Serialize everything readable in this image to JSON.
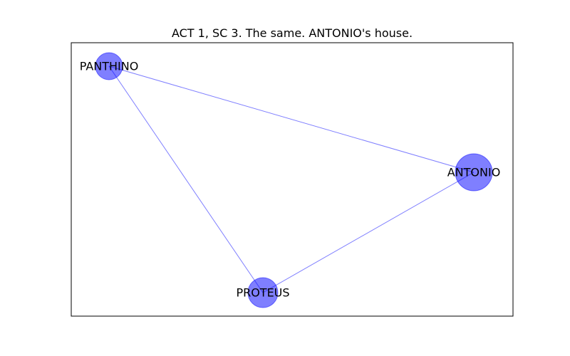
{
  "figure": {
    "title": "ACT 1, SC 3. The same. ANTONIO's house."
  },
  "graph": {
    "node_color": "#0000ff",
    "node_opacity": 0.5,
    "edge_color": "#0000ff",
    "edge_opacity": 0.5,
    "nodes": [
      {
        "id": "PANTHINO",
        "label": "PANTHINO"
      },
      {
        "id": "ANTONIO",
        "label": "ANTONIO"
      },
      {
        "id": "PROTEUS",
        "label": "PROTEUS"
      }
    ],
    "edges": [
      {
        "source": "PANTHINO",
        "target": "ANTONIO"
      },
      {
        "source": "PANTHINO",
        "target": "PROTEUS"
      },
      {
        "source": "ANTONIO",
        "target": "PROTEUS"
      }
    ]
  }
}
